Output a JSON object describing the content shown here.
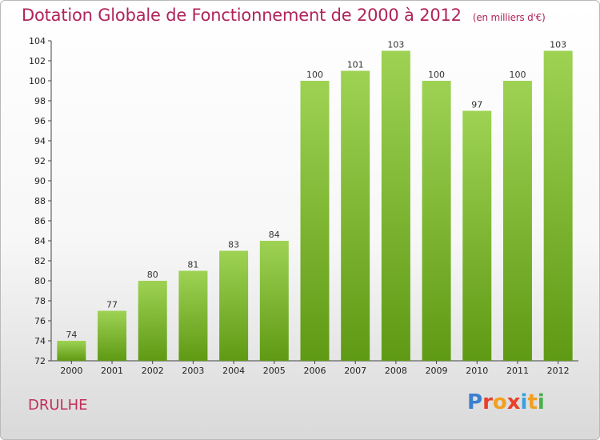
{
  "header": {
    "title": "Dotation Globale de Fonctionnement de 2000 à 2012",
    "unit": "(en milliers d'€)"
  },
  "footer": {
    "place": "DRULHE",
    "logo_text": "Proxiti"
  },
  "colors": {
    "title": "#b0245a",
    "bar_top": "#9ed253",
    "bar_bottom": "#5f9a14",
    "logo_letters": [
      "#3a7fd0",
      "#e8402a",
      "#f0a020",
      "#e8402a",
      "#3aa0e0",
      "#f0a020",
      "#48b048"
    ]
  },
  "chart_data": {
    "type": "bar",
    "title": "Dotation Globale de Fonctionnement de 2000 à 2012",
    "xlabel": "",
    "ylabel": "",
    "categories": [
      "2000",
      "2001",
      "2002",
      "2003",
      "2004",
      "2005",
      "2006",
      "2007",
      "2008",
      "2009",
      "2010",
      "2011",
      "2012"
    ],
    "values": [
      74,
      77,
      80,
      81,
      83,
      84,
      100,
      101,
      103,
      100,
      97,
      100,
      103
    ],
    "ylim": [
      72,
      104
    ],
    "yticks": [
      72,
      74,
      76,
      78,
      80,
      82,
      84,
      86,
      88,
      90,
      92,
      94,
      96,
      98,
      100,
      102,
      104
    ],
    "grid": false,
    "legend": "none"
  }
}
